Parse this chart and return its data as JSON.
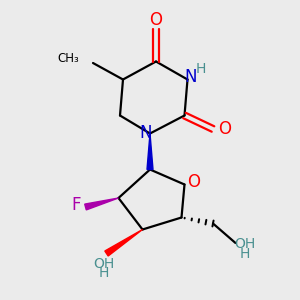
{
  "bg_color": "#ebebeb",
  "bond_color": "#000000",
  "o_color": "#ff0000",
  "n_color": "#0000cc",
  "f_color": "#aa00aa",
  "oh_color": "#4a9090",
  "figsize": [
    3.0,
    3.0
  ],
  "dpi": 100,
  "xlim": [
    0,
    10
  ],
  "ylim": [
    0,
    10
  ]
}
